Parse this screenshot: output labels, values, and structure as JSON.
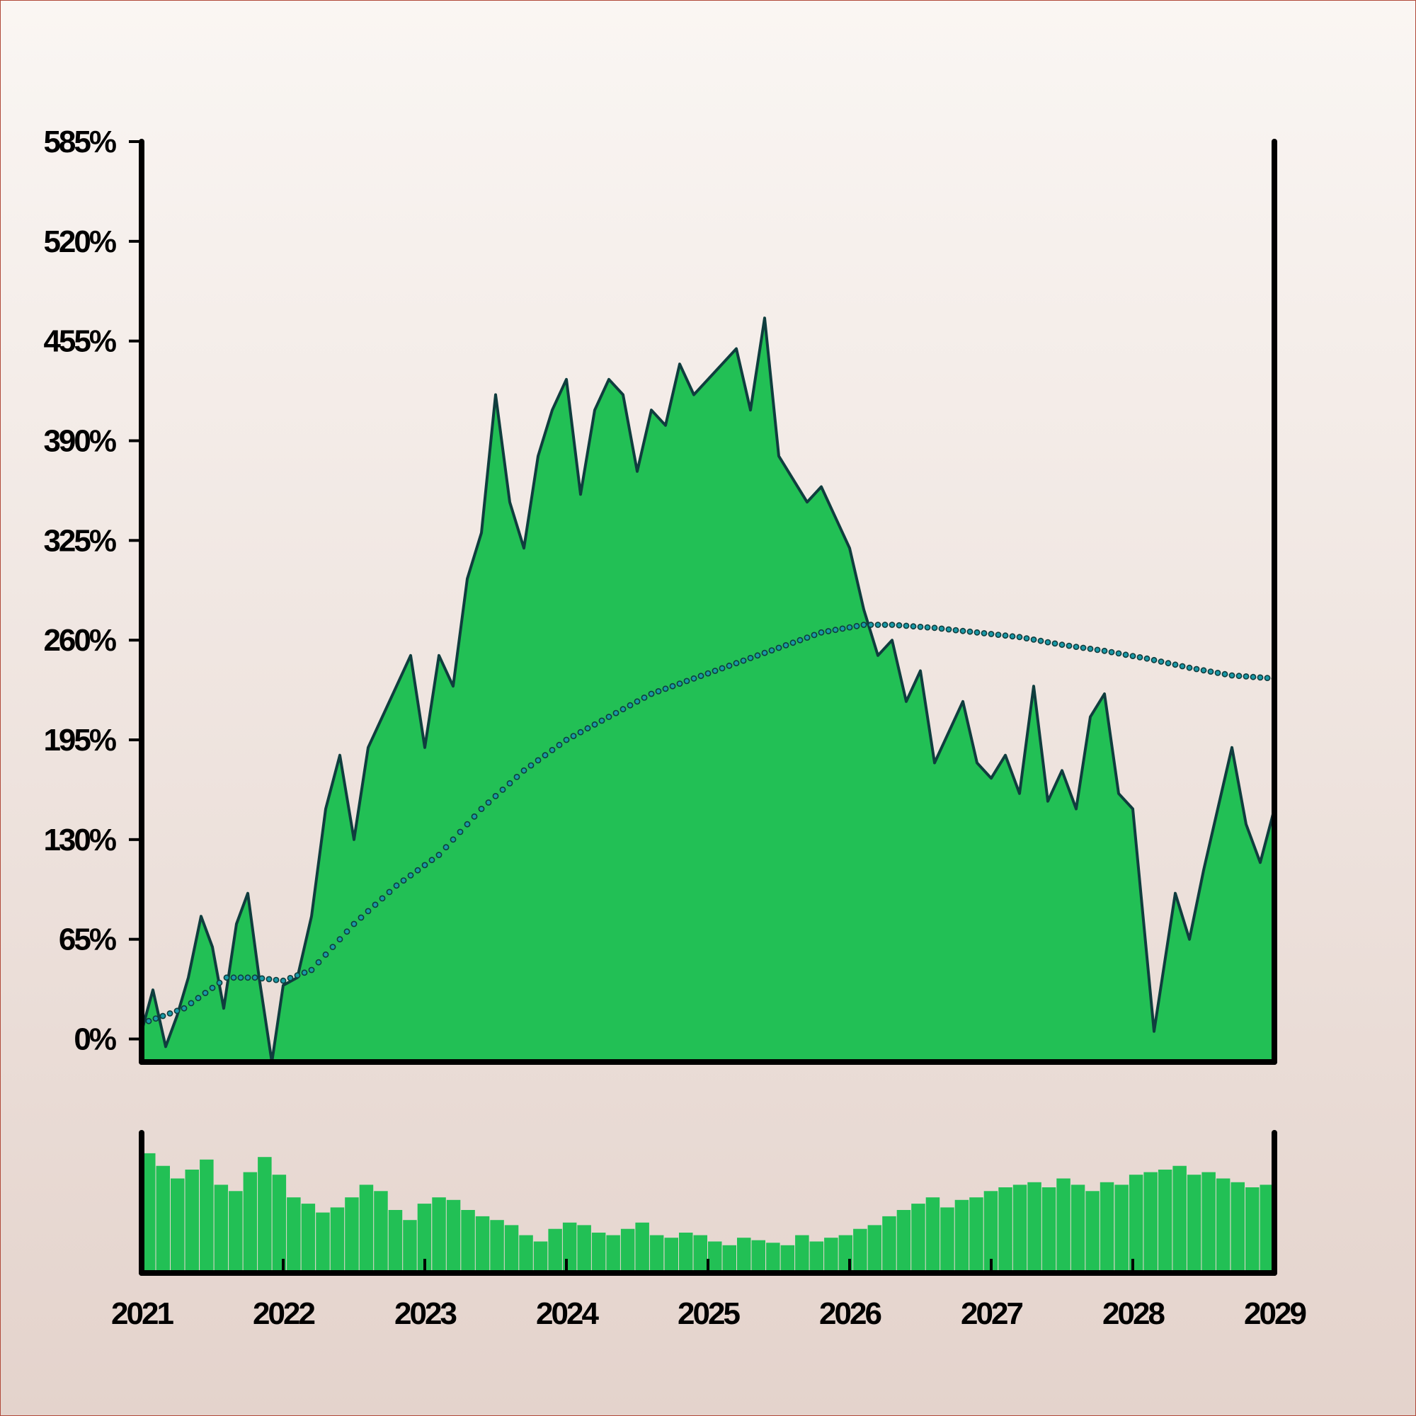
{
  "chart_data": [
    {
      "type": "area",
      "panel": "price",
      "x_start": "2021-01",
      "x_end": "2028-12",
      "x_ticks": [
        "2021",
        "2022",
        "2023",
        "2024",
        "2025",
        "2026",
        "2027",
        "2028",
        "2029"
      ],
      "y_ticks": [
        "0%",
        "65%",
        "130%",
        "195%",
        "260%",
        "325%",
        "390%",
        "455%",
        "520%",
        "585%"
      ],
      "ylim": [
        -15,
        585
      ],
      "grid": false,
      "series": [
        {
          "kind": "area",
          "color": "#22c055",
          "line_color": "#0f3d3e",
          "x": [
            2021.0,
            2021.08,
            2021.17,
            2021.25,
            2021.33,
            2021.42,
            2021.5,
            2021.58,
            2021.67,
            2021.75,
            2021.83,
            2021.92,
            2022.0,
            2022.1,
            2022.2,
            2022.3,
            2022.4,
            2022.5,
            2022.6,
            2022.7,
            2022.8,
            2022.9,
            2023.0,
            2023.1,
            2023.2,
            2023.3,
            2023.4,
            2023.5,
            2023.6,
            2023.7,
            2023.8,
            2023.9,
            2024.0,
            2024.1,
            2024.2,
            2024.3,
            2024.4,
            2024.5,
            2024.6,
            2024.7,
            2024.8,
            2024.9,
            2025.0,
            2025.1,
            2025.2,
            2025.3,
            2025.4,
            2025.5,
            2025.6,
            2025.7,
            2025.8,
            2025.9,
            2026.0,
            2026.1,
            2026.2,
            2026.3,
            2026.4,
            2026.5,
            2026.6,
            2026.7,
            2026.8,
            2026.9,
            2027.0,
            2027.1,
            2027.2,
            2027.3,
            2027.4,
            2027.5,
            2027.6,
            2027.7,
            2027.8,
            2027.9,
            2028.0,
            2028.15,
            2028.3,
            2028.4,
            2028.5,
            2028.6,
            2028.7,
            2028.8,
            2028.9,
            2029.0
          ],
          "values": [
            5,
            32,
            -5,
            15,
            40,
            80,
            60,
            20,
            75,
            95,
            40,
            -15,
            35,
            40,
            80,
            150,
            185,
            130,
            190,
            210,
            230,
            250,
            190,
            250,
            230,
            300,
            330,
            420,
            350,
            320,
            380,
            410,
            430,
            355,
            410,
            430,
            420,
            370,
            410,
            400,
            440,
            420,
            430,
            440,
            450,
            410,
            470,
            380,
            365,
            350,
            360,
            340,
            320,
            280,
            250,
            260,
            220,
            240,
            180,
            200,
            220,
            180,
            170,
            185,
            160,
            230,
            155,
            175,
            150,
            210,
            225,
            160,
            150,
            5,
            95,
            65,
            110,
            150,
            190,
            140,
            115,
            150
          ]
        },
        {
          "kind": "line-dotted",
          "color": "#1a9aa8",
          "x": [
            2021.0,
            2021.3,
            2021.6,
            2021.8,
            2022.0,
            2022.2,
            2022.5,
            2022.8,
            2023.1,
            2023.4,
            2023.7,
            2024.0,
            2024.3,
            2024.6,
            2024.9,
            2025.2,
            2025.5,
            2025.8,
            2026.1,
            2026.3,
            2026.6,
            2026.9,
            2027.2,
            2027.5,
            2027.8,
            2028.1,
            2028.4,
            2028.7,
            2029.0
          ],
          "values": [
            10,
            20,
            40,
            40,
            38,
            45,
            75,
            100,
            120,
            150,
            175,
            195,
            210,
            225,
            235,
            245,
            255,
            265,
            270,
            270,
            268,
            265,
            262,
            257,
            253,
            248,
            242,
            237,
            235
          ]
        }
      ]
    },
    {
      "type": "bar",
      "panel": "volume",
      "color": "#22c055",
      "ylim": [
        0,
        1
      ],
      "values": [
        0.95,
        0.85,
        0.75,
        0.82,
        0.9,
        0.7,
        0.65,
        0.8,
        0.92,
        0.78,
        0.6,
        0.55,
        0.48,
        0.52,
        0.6,
        0.7,
        0.65,
        0.5,
        0.42,
        0.55,
        0.6,
        0.58,
        0.5,
        0.45,
        0.42,
        0.38,
        0.3,
        0.25,
        0.35,
        0.4,
        0.38,
        0.32,
        0.3,
        0.35,
        0.4,
        0.3,
        0.28,
        0.32,
        0.3,
        0.25,
        0.22,
        0.28,
        0.26,
        0.24,
        0.22,
        0.3,
        0.25,
        0.28,
        0.3,
        0.35,
        0.38,
        0.45,
        0.5,
        0.55,
        0.6,
        0.52,
        0.58,
        0.6,
        0.65,
        0.68,
        0.7,
        0.72,
        0.68,
        0.75,
        0.7,
        0.65,
        0.72,
        0.7,
        0.78,
        0.8,
        0.82,
        0.85,
        0.78,
        0.8,
        0.75,
        0.72,
        0.68,
        0.7
      ]
    }
  ]
}
